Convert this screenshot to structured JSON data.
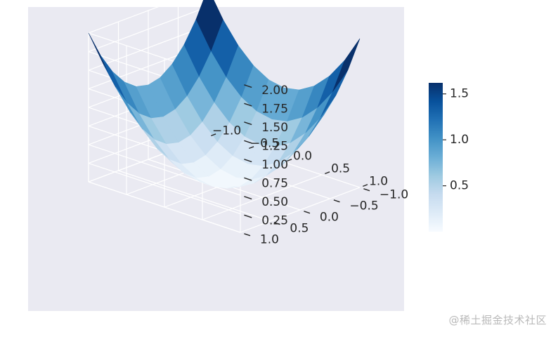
{
  "chart_data": {
    "type": "surface3d",
    "function": "z = x^2 + y^2",
    "x": [
      -1.0,
      -0.8,
      -0.6,
      -0.4,
      -0.2,
      0.0,
      0.2,
      0.4,
      0.6,
      0.8,
      1.0
    ],
    "y": [
      -1.0,
      -0.8,
      -0.6,
      -0.4,
      -0.2,
      0.0,
      0.2,
      0.4,
      0.6,
      0.8,
      1.0
    ],
    "xlim": [
      -1.0,
      1.0
    ],
    "ylim": [
      -1.0,
      1.0
    ],
    "zlim": [
      0.0,
      2.0
    ],
    "x_ticks": [
      "−1.0",
      "−0.5",
      "0.0",
      "0.5",
      "1.0"
    ],
    "y_ticks": [
      "−1.0",
      "−0.5",
      "0.0",
      "0.5",
      "1.0"
    ],
    "z_ticks": [
      "0.25",
      "0.50",
      "0.75",
      "1.00",
      "1.25",
      "1.50",
      "1.75",
      "2.00"
    ],
    "colormap": "Blues",
    "colormap_colors": [
      "#f7fbff",
      "#deebf7",
      "#c6dbef",
      "#9ecae1",
      "#6baed6",
      "#4292c6",
      "#2171b5",
      "#08519c",
      "#08306b"
    ],
    "colorbar": {
      "range": [
        0.0,
        1.62
      ],
      "ticks": [
        0.5,
        1.0,
        1.5
      ],
      "tick_labels": [
        "0.5",
        "1.0",
        "1.5"
      ]
    },
    "panel_color": "#eaeaf2",
    "grid": true
  },
  "watermark": "@稀土掘金技术社区"
}
